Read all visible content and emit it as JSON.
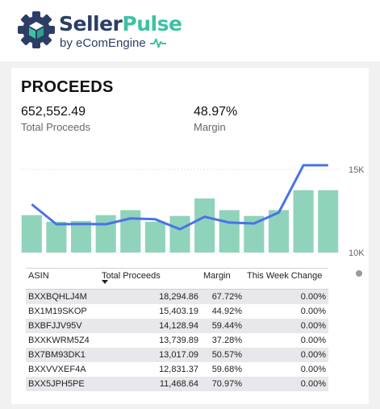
{
  "brand": {
    "name_part1": "Seller",
    "name_part2": "Pulse",
    "subtitle": "by eComEngine",
    "colors": {
      "navy": "#2c3e66",
      "teal": "#3ec1a3"
    }
  },
  "card": {
    "title": "PROCEEDS",
    "kpis": [
      {
        "value": "652,552.49",
        "label": "Total Proceeds"
      },
      {
        "value": "48.97%",
        "label": "Margin"
      }
    ]
  },
  "chart_data": {
    "type": "bar",
    "series": [
      {
        "kind": "bar",
        "values": [
          12250,
          11850,
          11900,
          12250,
          12550,
          11850,
          12200,
          13250,
          12550,
          12200,
          12550,
          13750,
          13750
        ],
        "color": "#8fd3bb"
      },
      {
        "kind": "line",
        "values": [
          12900,
          11700,
          11720,
          11700,
          12050,
          12000,
          11400,
          12150,
          11800,
          11750,
          12400,
          15250,
          15250
        ],
        "color": "#4a72e8"
      }
    ],
    "ylim": [
      10000,
      15000
    ],
    "yticks": [
      "15K",
      "10K"
    ],
    "grid": true
  },
  "table": {
    "columns": [
      "ASIN",
      "Total Proceeds",
      "Margin",
      "This Week Change"
    ],
    "rows": [
      [
        "BXXBQHLJ4M",
        "18,294.86",
        "67.72%",
        "0.00%"
      ],
      [
        "BX1M19SKOP",
        "15,403.19",
        "44.92%",
        "0.00%"
      ],
      [
        "BXBFJJV95V",
        "14,128.94",
        "59.44%",
        "0.00%"
      ],
      [
        "BXXKWRM5Z4",
        "13,739.89",
        "37.28%",
        "0.00%"
      ],
      [
        "BX7BM93DK1",
        "13,017.09",
        "50.57%",
        "0.00%"
      ],
      [
        "BXXVVXEF4A",
        "12,831.37",
        "59.68%",
        "0.00%"
      ],
      [
        "BXX5JPH5PE",
        "11,468.64",
        "70.97%",
        "0.00%"
      ]
    ]
  }
}
